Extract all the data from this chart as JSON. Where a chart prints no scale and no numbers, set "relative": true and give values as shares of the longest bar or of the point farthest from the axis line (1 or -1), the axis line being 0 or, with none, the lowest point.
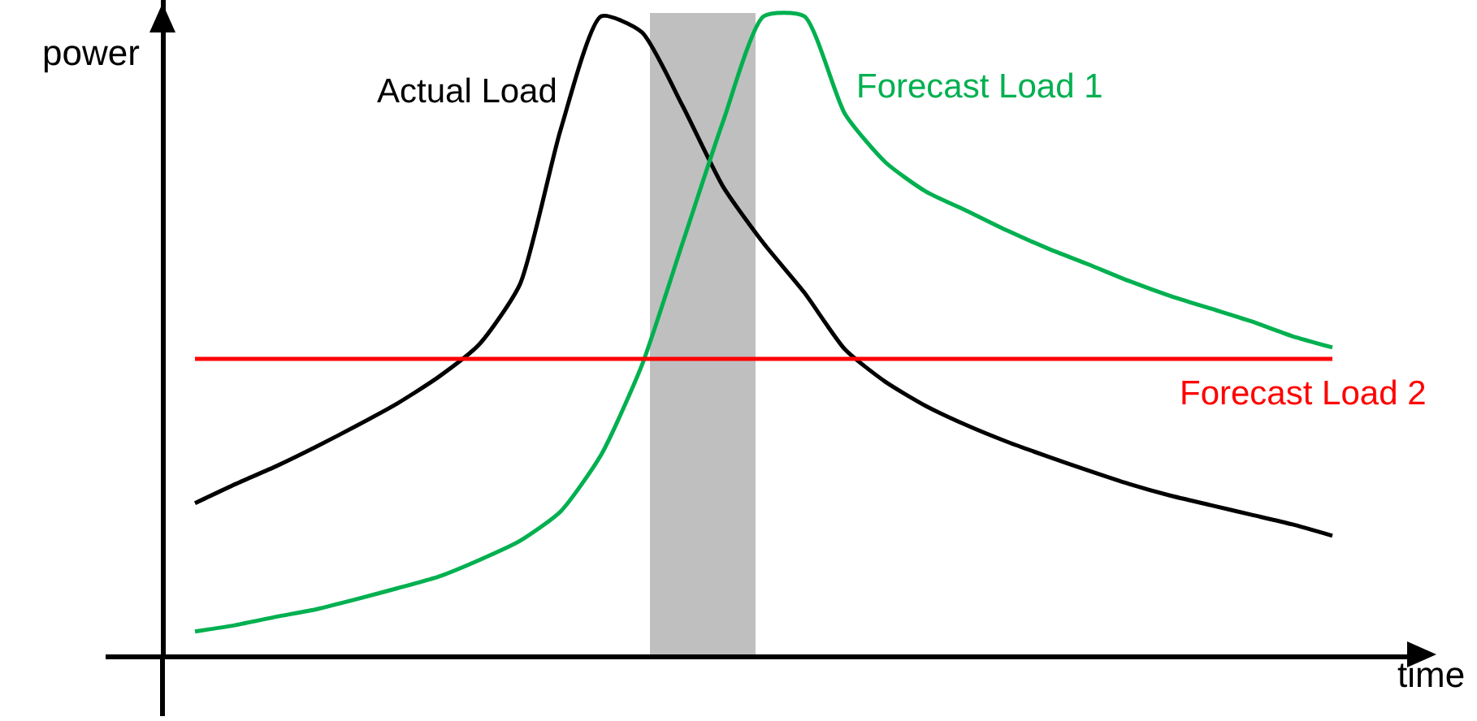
{
  "chart_data": {
    "type": "line",
    "relative": true,
    "xlabel": "time",
    "ylabel": "power",
    "categories": [
      null,
      null,
      null,
      null,
      null,
      null,
      null,
      null,
      null,
      null,
      null,
      null,
      null,
      null,
      null,
      null,
      null,
      null,
      null,
      null,
      null,
      null,
      null,
      null,
      null,
      null,
      null,
      null,
      null
    ],
    "series": [
      {
        "name": "Actual Load",
        "color": "#000000",
        "values": [
          0.237,
          0.267,
          0.295,
          0.326,
          0.359,
          0.394,
          0.435,
          0.486,
          0.58,
          0.822,
          1.0,
          0.975,
          0.86,
          0.733,
          0.644,
          0.567,
          0.478,
          0.427,
          0.389,
          0.359,
          0.333,
          0.31,
          0.288,
          0.267,
          0.249,
          0.234,
          0.219,
          0.204,
          0.186
        ]
      },
      {
        "name": "Forecast Load 1",
        "color": "#00b050",
        "values": [
          0.036,
          0.046,
          0.059,
          0.071,
          0.087,
          0.104,
          0.122,
          0.148,
          0.178,
          0.224,
          0.313,
          0.453,
          0.644,
          0.835,
          1.0,
          1.0,
          0.847,
          0.771,
          0.725,
          0.695,
          0.664,
          0.636,
          0.611,
          0.585,
          0.562,
          0.542,
          0.522,
          0.499,
          0.481
        ]
      },
      {
        "name": "Forecast Load 2",
        "color": "#ff0000",
        "values": [
          0.463,
          0.463,
          0.463,
          0.463,
          0.463,
          0.463,
          0.463,
          0.463,
          0.463,
          0.463,
          0.463,
          0.463,
          0.463,
          0.463,
          0.463,
          0.463,
          0.463,
          0.463,
          0.463,
          0.463,
          0.463,
          0.463,
          0.463,
          0.463,
          0.463,
          0.463,
          0.463,
          0.463,
          0.463
        ]
      }
    ]
  }
}
